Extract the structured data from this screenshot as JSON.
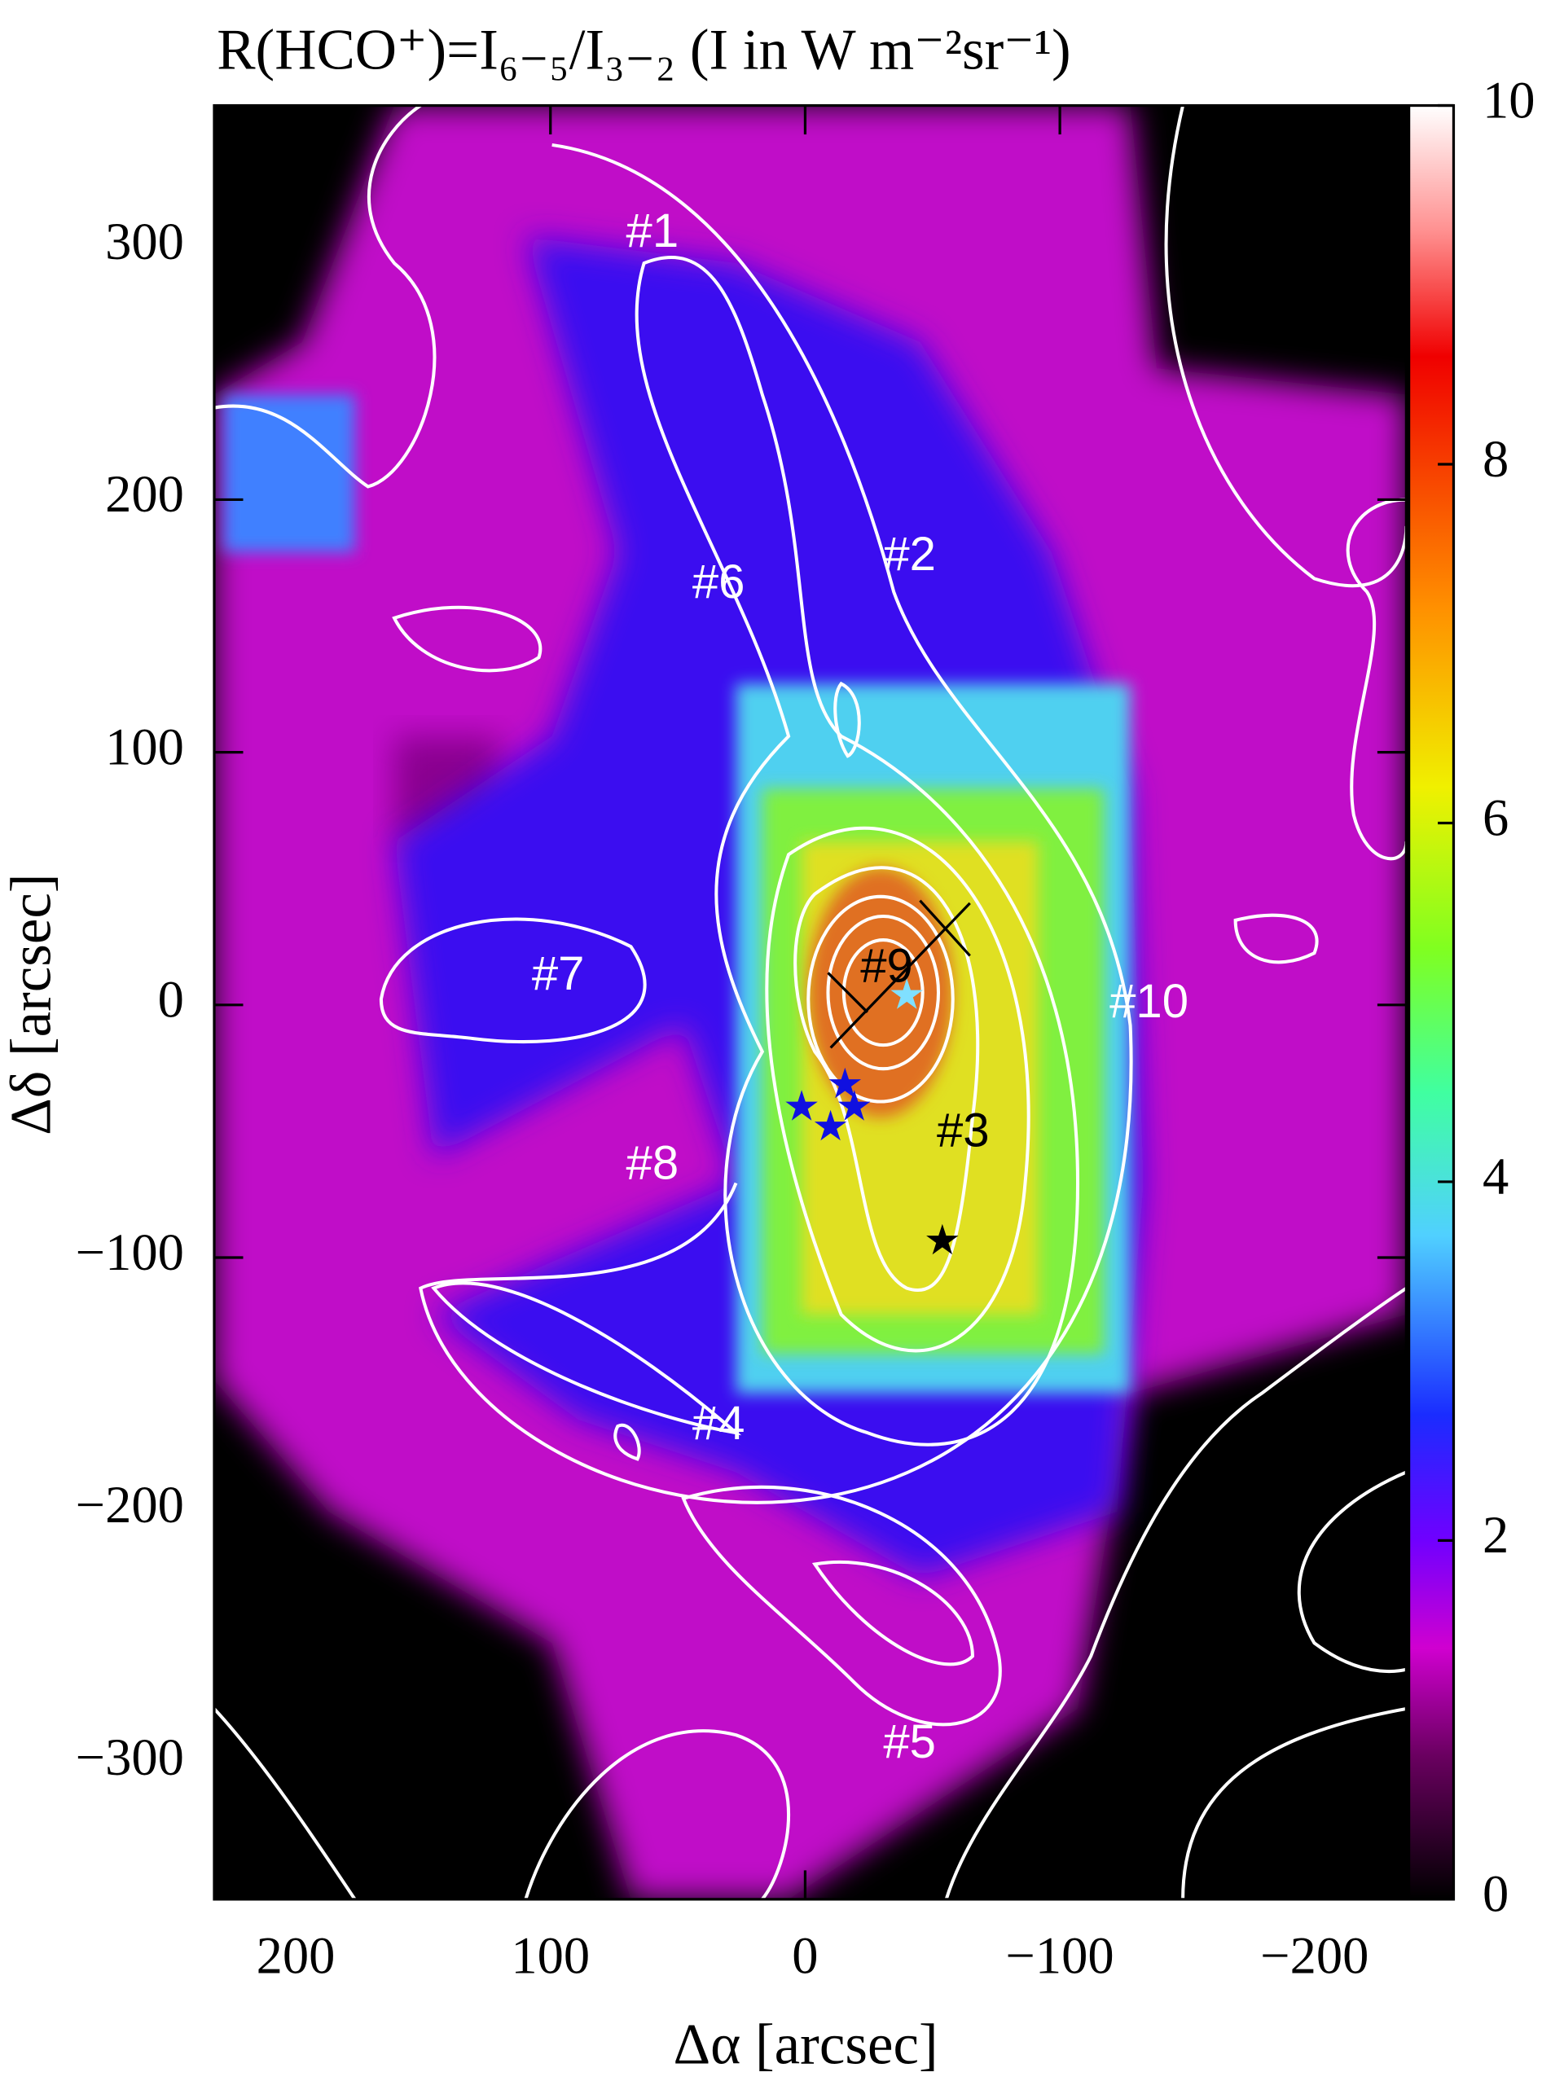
{
  "chart_data": {
    "type": "heatmap",
    "title": "R(HCO⁺)=I₆₋₅/I₃₋₂    (I in W m⁻²sr⁻¹)",
    "xlabel": "Δα [arcsec]",
    "ylabel": "Δδ [arcsec]",
    "xlim": [
      232,
      -236
    ],
    "ylim": [
      -354,
      356
    ],
    "xticks": [
      200,
      100,
      0,
      {
        "value": -100,
        "label": "−100"
      },
      {
        "value": -200,
        "label": "−200"
      }
    ],
    "yticks": [
      300,
      200,
      100,
      0,
      {
        "value": -100,
        "label": "−100"
      },
      {
        "value": -200,
        "label": "−200"
      },
      {
        "value": -300,
        "label": "−300"
      }
    ],
    "clim": [
      0,
      10
    ],
    "cticks": [
      0,
      2,
      4,
      6,
      8,
      10
    ],
    "annotations": [
      {
        "text": "#1",
        "x": 60,
        "y": 305,
        "color": "#ffffff"
      },
      {
        "text": "#2",
        "x": -41,
        "y": 177,
        "color": "#ffffff"
      },
      {
        "text": "#3",
        "x": -62,
        "y": -51,
        "color": "#000000"
      },
      {
        "text": "#4",
        "x": 34,
        "y": -167,
        "color": "#ffffff"
      },
      {
        "text": "#5",
        "x": -41,
        "y": -293,
        "color": "#ffffff"
      },
      {
        "text": "#6",
        "x": 34,
        "y": 166,
        "color": "#ffffff"
      },
      {
        "text": "#7",
        "x": 97,
        "y": 11,
        "color": "#ffffff"
      },
      {
        "text": "#8",
        "x": 60,
        "y": -64,
        "color": "#ffffff"
      },
      {
        "text": "#9",
        "x": -32,
        "y": 14,
        "color": "#000000"
      },
      {
        "text": "#10",
        "x": -135,
        "y": 0,
        "color": "#ffffff"
      }
    ]
  }
}
